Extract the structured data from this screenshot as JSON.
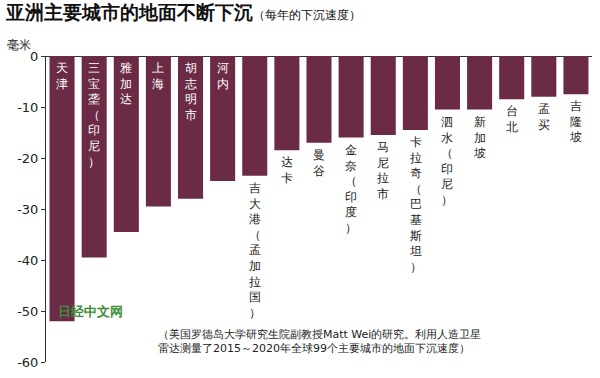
{
  "chart_data": {
    "type": "bar",
    "title": "亚洲主要城市的地面不断下沉",
    "subtitle": "（每年的下沉速度）",
    "ylabel": "毫米",
    "categories": [
      "天津",
      "三宝垄（印尼）",
      "雅加达",
      "上海",
      "胡志明市",
      "河内",
      "吉大港（孟加拉国）",
      "达卡",
      "曼谷",
      "金奈（印度）",
      "马尼拉市",
      "卡拉奇（巴基斯坦）",
      "泗水（印尼）",
      "新加坡",
      "台北",
      "孟买",
      "吉隆坡"
    ],
    "values": [
      -52,
      -39.5,
      -34.5,
      -29.5,
      -28,
      -24.5,
      -23.5,
      -18.5,
      -17,
      -16,
      -15.5,
      -14.5,
      -10.5,
      -10.5,
      -8.5,
      -8,
      -7.5
    ],
    "color": "#6b2b46",
    "ylim": [
      -60,
      0
    ],
    "yticks": [
      0,
      -10,
      -20,
      -30,
      -40,
      -50,
      -60
    ],
    "grid": false,
    "tick_labels": "y",
    "note": "（美国罗德岛大学研究生院副教授Matt Wei的研究。利用人造卫星\n雷达测量了2015～2020年全球99个主要城市的地面下沉速度）",
    "watermark": "日经中文网"
  }
}
